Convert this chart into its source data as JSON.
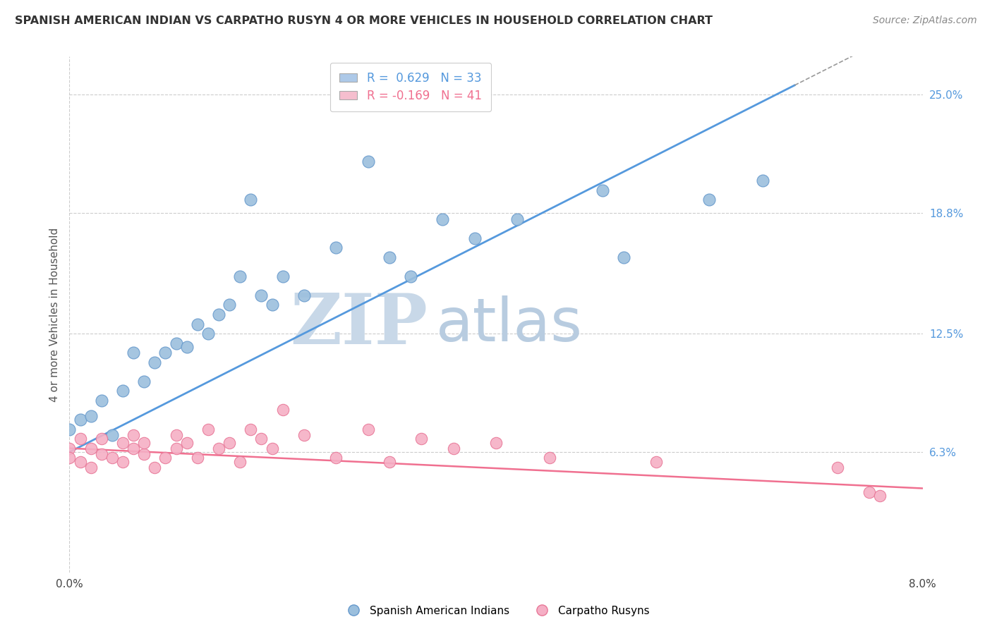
{
  "title": "SPANISH AMERICAN INDIAN VS CARPATHO RUSYN 4 OR MORE VEHICLES IN HOUSEHOLD CORRELATION CHART",
  "source": "Source: ZipAtlas.com",
  "ylabel": "4 or more Vehicles in Household",
  "x_min": 0.0,
  "x_max": 0.08,
  "y_min": 0.0,
  "y_max": 0.27,
  "x_tick_labels": [
    "0.0%",
    "8.0%"
  ],
  "x_tick_vals": [
    0.0,
    0.08
  ],
  "y_tick_labels_right": [
    "25.0%",
    "18.8%",
    "12.5%",
    "6.3%"
  ],
  "y_tick_vals_right": [
    0.25,
    0.188,
    0.125,
    0.063
  ],
  "legend_blue_label": "R =  0.629   N = 33",
  "legend_pink_label": "R = -0.169   N = 41",
  "legend_blue_color": "#adc9e8",
  "legend_pink_color": "#f5bece",
  "blue_line_color": "#5599dd",
  "pink_line_color": "#f07090",
  "watermark_zip": "ZIP",
  "watermark_atlas": "atlas",
  "watermark_color_zip": "#c8d8e8",
  "watermark_color_atlas": "#b8cce0",
  "blue_scatter_color": "#9bbfdd",
  "pink_scatter_color": "#f5afc5",
  "blue_scatter_edge": "#6699cc",
  "pink_scatter_edge": "#e87898",
  "legend1_label": "Spanish American Indians",
  "legend2_label": "Carpatho Rusyns",
  "blue_r": 0.629,
  "blue_n": 33,
  "pink_r": -0.169,
  "pink_n": 41,
  "blue_line_x0": 0.0,
  "blue_line_y0": 0.063,
  "blue_line_x1": 0.068,
  "blue_line_y1": 0.255,
  "pink_line_x0": 0.0,
  "pink_line_y0": 0.065,
  "pink_line_x1": 0.08,
  "pink_line_y1": 0.044,
  "blue_x": [
    0.0,
    0.001,
    0.002,
    0.003,
    0.004,
    0.005,
    0.006,
    0.007,
    0.008,
    0.009,
    0.01,
    0.011,
    0.012,
    0.013,
    0.014,
    0.015,
    0.016,
    0.017,
    0.018,
    0.019,
    0.02,
    0.022,
    0.025,
    0.028,
    0.03,
    0.032,
    0.035,
    0.038,
    0.042,
    0.05,
    0.052,
    0.06,
    0.065
  ],
  "blue_y": [
    0.075,
    0.08,
    0.082,
    0.09,
    0.072,
    0.095,
    0.115,
    0.1,
    0.11,
    0.115,
    0.12,
    0.118,
    0.13,
    0.125,
    0.135,
    0.14,
    0.155,
    0.195,
    0.145,
    0.14,
    0.155,
    0.145,
    0.17,
    0.215,
    0.165,
    0.155,
    0.185,
    0.175,
    0.185,
    0.2,
    0.165,
    0.195,
    0.205
  ],
  "pink_x": [
    0.0,
    0.0,
    0.001,
    0.001,
    0.002,
    0.002,
    0.003,
    0.003,
    0.004,
    0.005,
    0.005,
    0.006,
    0.006,
    0.007,
    0.007,
    0.008,
    0.009,
    0.01,
    0.01,
    0.011,
    0.012,
    0.013,
    0.014,
    0.015,
    0.016,
    0.017,
    0.018,
    0.019,
    0.02,
    0.022,
    0.025,
    0.028,
    0.03,
    0.033,
    0.036,
    0.04,
    0.045,
    0.055,
    0.072,
    0.075,
    0.076
  ],
  "pink_y": [
    0.065,
    0.06,
    0.058,
    0.07,
    0.065,
    0.055,
    0.062,
    0.07,
    0.06,
    0.068,
    0.058,
    0.065,
    0.072,
    0.062,
    0.068,
    0.055,
    0.06,
    0.072,
    0.065,
    0.068,
    0.06,
    0.075,
    0.065,
    0.068,
    0.058,
    0.075,
    0.07,
    0.065,
    0.085,
    0.072,
    0.06,
    0.075,
    0.058,
    0.07,
    0.065,
    0.068,
    0.06,
    0.058,
    0.055,
    0.042,
    0.04
  ]
}
